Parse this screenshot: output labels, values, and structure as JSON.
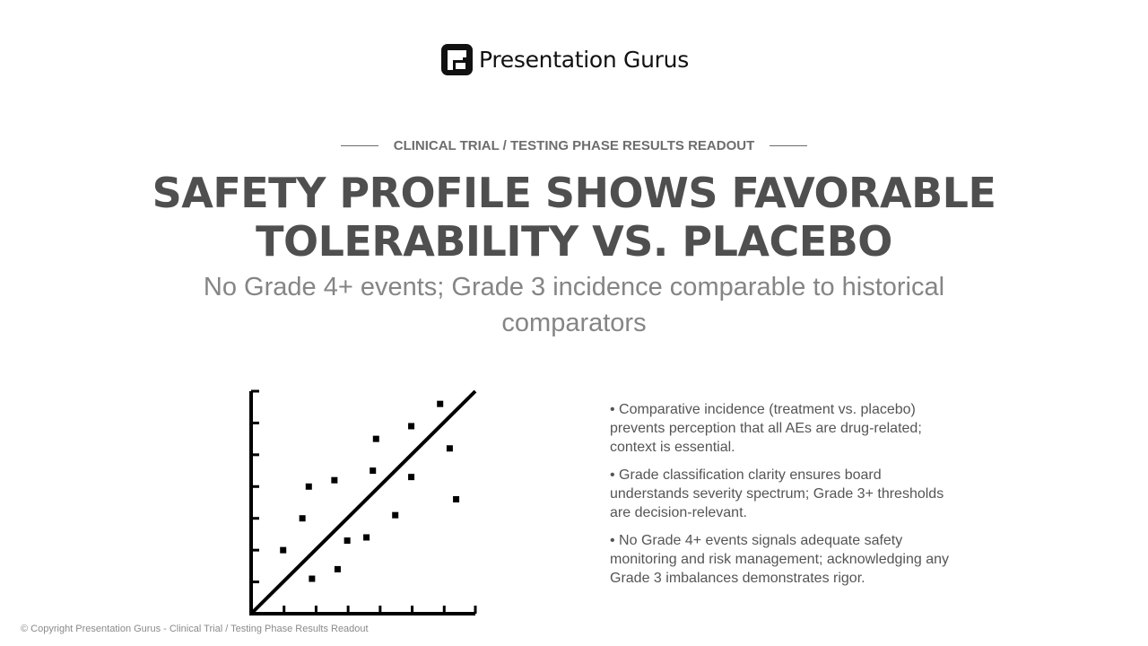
{
  "brand": {
    "name": "Presentation Gurus",
    "logo_icon": "presentation-gurus-logo-icon",
    "color": "#111111"
  },
  "eyebrow": "CLINICAL TRIAL / TESTING PHASE RESULTS READOUT",
  "title": "SAFETY PROFILE SHOWS FAVORABLE TOLERABILITY VS. PLACEBO",
  "subtitle": "No Grade 4+ events; Grade 3 incidence comparable to historical comparators",
  "illustration": {
    "icon": "scatter-plot-icon",
    "points": [
      {
        "x": 1.0,
        "y": 2.0
      },
      {
        "x": 1.6,
        "y": 3.0
      },
      {
        "x": 1.8,
        "y": 4.0
      },
      {
        "x": 1.9,
        "y": 1.1
      },
      {
        "x": 2.6,
        "y": 4.2
      },
      {
        "x": 2.7,
        "y": 1.4
      },
      {
        "x": 3.0,
        "y": 2.3
      },
      {
        "x": 3.6,
        "y": 2.4
      },
      {
        "x": 3.8,
        "y": 4.5
      },
      {
        "x": 3.9,
        "y": 5.5
      },
      {
        "x": 4.5,
        "y": 3.1
      },
      {
        "x": 5.0,
        "y": 4.3
      },
      {
        "x": 5.0,
        "y": 5.9
      },
      {
        "x": 5.9,
        "y": 6.6
      },
      {
        "x": 6.2,
        "y": 5.2
      },
      {
        "x": 6.4,
        "y": 3.6
      }
    ],
    "x_ticks": 6,
    "y_ticks": 7,
    "color": "#000000"
  },
  "bullets": [
    "• Comparative incidence (treatment vs. placebo) prevents perception that all AEs are drug-related; context is essential.",
    "• Grade classification clarity ensures board understands severity spectrum; Grade 3+ thresholds are decision-relevant.",
    "• No Grade 4+ events signals adequate safety monitoring and risk management; acknowledging any Grade 3 imbalances demonstrates rigor."
  ],
  "footer": "© Copyright Presentation Gurus - Clinical Trial / Testing Phase Results Readout"
}
